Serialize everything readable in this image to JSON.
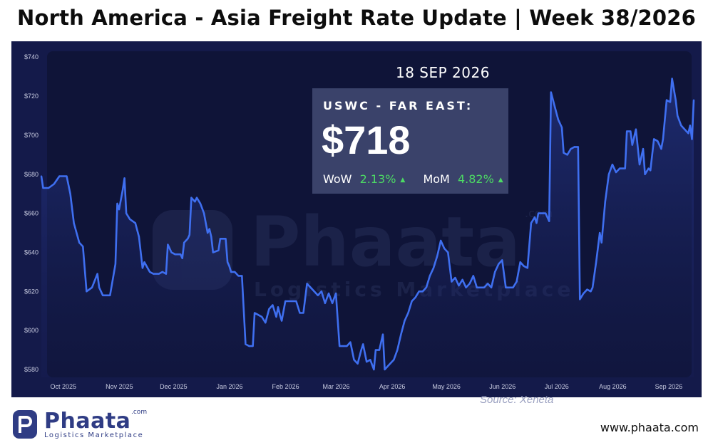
{
  "title": "North America - Asia Freight Rate Update | Week 38/2026",
  "colors": {
    "panel_bg": "#141a4a",
    "plot_bg": "#0f1438",
    "line": "#3f6ff0",
    "positive": "#4cd964",
    "brand": "#2f3c84"
  },
  "overlay": {
    "date": "18 SEP 2026",
    "lane_label": "USWC - FAR EAST:",
    "value": "$718",
    "wow_label": "WoW",
    "wow_value": "2.13%",
    "mom_label": "MoM",
    "mom_value": "4.82%",
    "up_icon": "triangle-up-icon"
  },
  "watermark": {
    "name": "Phaata",
    "tagline": "Logistics Marketplace",
    "com": ".com"
  },
  "source": "Source: Xeneta",
  "footer": {
    "logo_name": "Phaata",
    "logo_com": ".com",
    "logo_tagline": "Logistics Marketplace",
    "url": "www.phaata.com"
  },
  "chart_data": {
    "type": "area",
    "x_start": "2025-09-22",
    "x_end": "2026-09-18",
    "ylim": [
      576,
      743
    ],
    "y_ticks": [
      580,
      600,
      620,
      640,
      660,
      680,
      700,
      720,
      740
    ],
    "y_tick_labels": [
      "$580",
      "$600",
      "$620",
      "$640",
      "$660",
      "$680",
      "$700",
      "$720",
      "$740"
    ],
    "x_ticks": [
      "2025-10-01",
      "2025-11-01",
      "2025-12-01",
      "2026-01-01",
      "2026-02-01",
      "2026-03-01",
      "2026-04-01",
      "2026-05-01",
      "2026-06-01",
      "2026-07-01",
      "2026-08-01",
      "2026-09-01"
    ],
    "x_tick_labels": [
      "Oct 2025",
      "Nov 2025",
      "Dec 2025",
      "Jan 2026",
      "Feb 2026",
      "Mar 2026",
      "Apr 2026",
      "May 2026",
      "Jun 2026",
      "Jul 2026",
      "Aug 2026",
      "Sep 2026"
    ],
    "series": [
      {
        "values": [
          [
            "2025-09-22",
            679
          ],
          [
            "2025-09-23",
            673
          ],
          [
            "2025-09-26",
            673
          ],
          [
            "2025-09-29",
            675
          ],
          [
            "2025-10-02",
            679
          ],
          [
            "2025-10-06",
            679
          ],
          [
            "2025-10-08",
            670
          ],
          [
            "2025-10-10",
            655
          ],
          [
            "2025-10-13",
            645
          ],
          [
            "2025-10-15",
            643
          ],
          [
            "2025-10-17",
            620
          ],
          [
            "2025-10-20",
            622
          ],
          [
            "2025-10-23",
            629
          ],
          [
            "2025-10-24",
            622
          ],
          [
            "2025-10-26",
            618
          ],
          [
            "2025-10-30",
            618
          ],
          [
            "2025-11-02",
            634
          ],
          [
            "2025-11-03",
            665
          ],
          [
            "2025-11-04",
            662
          ],
          [
            "2025-11-06",
            672
          ],
          [
            "2025-11-07",
            678
          ],
          [
            "2025-11-08",
            660
          ],
          [
            "2025-11-10",
            657
          ],
          [
            "2025-11-13",
            655
          ],
          [
            "2025-11-15",
            648
          ],
          [
            "2025-11-17",
            632
          ],
          [
            "2025-11-18",
            635
          ],
          [
            "2025-11-21",
            630
          ],
          [
            "2025-11-23",
            629
          ],
          [
            "2025-11-26",
            629
          ],
          [
            "2025-11-28",
            630
          ],
          [
            "2025-11-30",
            629
          ],
          [
            "2025-12-01",
            644
          ],
          [
            "2025-12-03",
            640
          ],
          [
            "2025-12-05",
            639
          ],
          [
            "2025-12-08",
            639
          ],
          [
            "2025-12-09",
            637
          ],
          [
            "2025-12-10",
            645
          ],
          [
            "2025-12-12",
            647
          ],
          [
            "2025-12-13",
            649
          ],
          [
            "2025-12-14",
            668
          ],
          [
            "2025-12-16",
            666
          ],
          [
            "2025-12-17",
            668
          ],
          [
            "2025-12-19",
            665
          ],
          [
            "2025-12-21",
            660
          ],
          [
            "2025-12-23",
            650
          ],
          [
            "2025-12-24",
            652
          ],
          [
            "2025-12-25",
            648
          ],
          [
            "2025-12-26",
            640
          ],
          [
            "2025-12-29",
            641
          ],
          [
            "2025-12-30",
            647
          ],
          [
            "2026-01-02",
            647
          ],
          [
            "2026-01-03",
            635
          ],
          [
            "2026-01-04",
            633
          ],
          [
            "2026-01-05",
            630
          ],
          [
            "2026-01-07",
            630
          ],
          [
            "2026-01-09",
            628
          ],
          [
            "2026-01-11",
            628
          ],
          [
            "2026-01-13",
            593
          ],
          [
            "2026-01-15",
            592
          ],
          [
            "2026-01-17",
            592
          ],
          [
            "2026-01-18",
            609
          ],
          [
            "2026-01-20",
            608
          ],
          [
            "2026-01-22",
            607
          ],
          [
            "2026-01-24",
            604
          ],
          [
            "2026-01-26",
            611
          ],
          [
            "2026-01-28",
            613
          ],
          [
            "2026-01-30",
            607
          ],
          [
            "2026-01-31",
            612
          ],
          [
            "2026-02-01",
            608
          ],
          [
            "2026-02-02",
            605
          ],
          [
            "2026-02-04",
            615
          ],
          [
            "2026-02-06",
            615
          ],
          [
            "2026-02-08",
            615
          ],
          [
            "2026-02-10",
            615
          ],
          [
            "2026-02-12",
            609
          ],
          [
            "2026-02-14",
            609
          ],
          [
            "2026-02-16",
            624
          ],
          [
            "2026-02-18",
            622
          ],
          [
            "2026-02-20",
            620
          ],
          [
            "2026-02-22",
            618
          ],
          [
            "2026-02-24",
            620
          ],
          [
            "2026-02-26",
            614
          ],
          [
            "2026-02-28",
            619
          ],
          [
            "2026-03-02",
            614
          ],
          [
            "2026-03-04",
            619
          ],
          [
            "2026-03-06",
            592
          ],
          [
            "2026-03-08",
            592
          ],
          [
            "2026-03-10",
            592
          ],
          [
            "2026-03-12",
            594
          ],
          [
            "2026-03-14",
            585
          ],
          [
            "2026-03-16",
            583
          ],
          [
            "2026-03-18",
            590
          ],
          [
            "2026-03-19",
            593
          ],
          [
            "2026-03-21",
            584
          ],
          [
            "2026-03-23",
            585
          ],
          [
            "2026-03-25",
            580
          ],
          [
            "2026-03-26",
            590
          ],
          [
            "2026-03-28",
            590
          ],
          [
            "2026-03-30",
            598
          ],
          [
            "2026-03-31",
            580
          ],
          [
            "2026-04-02",
            582
          ],
          [
            "2026-04-05",
            585
          ],
          [
            "2026-04-07",
            590
          ],
          [
            "2026-04-09",
            598
          ],
          [
            "2026-04-11",
            605
          ],
          [
            "2026-04-13",
            609
          ],
          [
            "2026-04-15",
            615
          ],
          [
            "2026-04-17",
            617
          ],
          [
            "2026-04-19",
            620
          ],
          [
            "2026-04-21",
            620
          ],
          [
            "2026-04-23",
            622
          ],
          [
            "2026-04-25",
            628
          ],
          [
            "2026-04-27",
            632
          ],
          [
            "2026-04-29",
            638
          ],
          [
            "2026-05-01",
            646
          ],
          [
            "2026-05-03",
            642
          ],
          [
            "2026-05-05",
            640
          ],
          [
            "2026-05-07",
            625
          ],
          [
            "2026-05-09",
            627
          ],
          [
            "2026-05-11",
            623
          ],
          [
            "2026-05-13",
            626
          ],
          [
            "2026-05-15",
            622
          ],
          [
            "2026-05-17",
            624
          ],
          [
            "2026-05-19",
            628
          ],
          [
            "2026-05-21",
            622
          ],
          [
            "2026-05-23",
            622
          ],
          [
            "2026-05-25",
            622
          ],
          [
            "2026-05-27",
            624
          ],
          [
            "2026-05-29",
            622
          ],
          [
            "2026-05-31",
            630
          ],
          [
            "2026-06-02",
            634
          ],
          [
            "2026-06-04",
            636
          ],
          [
            "2026-06-06",
            622
          ],
          [
            "2026-06-08",
            622
          ],
          [
            "2026-06-10",
            622
          ],
          [
            "2026-06-12",
            625
          ],
          [
            "2026-06-14",
            635
          ],
          [
            "2026-06-16",
            633
          ],
          [
            "2026-06-18",
            632
          ],
          [
            "2026-06-20",
            655
          ],
          [
            "2026-06-22",
            658
          ],
          [
            "2026-06-23",
            655
          ],
          [
            "2026-06-24",
            660
          ],
          [
            "2026-06-26",
            660
          ],
          [
            "2026-06-28",
            660
          ],
          [
            "2026-06-30",
            656
          ],
          [
            "2026-07-01",
            722
          ],
          [
            "2026-07-03",
            715
          ],
          [
            "2026-07-05",
            708
          ],
          [
            "2026-07-07",
            704
          ],
          [
            "2026-07-08",
            691
          ],
          [
            "2026-07-10",
            690
          ],
          [
            "2026-07-12",
            693
          ],
          [
            "2026-07-14",
            694
          ],
          [
            "2026-07-16",
            694
          ],
          [
            "2026-07-17",
            616
          ],
          [
            "2026-07-19",
            619
          ],
          [
            "2026-07-21",
            621
          ],
          [
            "2026-07-23",
            620
          ],
          [
            "2026-07-24",
            622
          ],
          [
            "2026-07-26",
            635
          ],
          [
            "2026-07-28",
            650
          ],
          [
            "2026-07-29",
            645
          ],
          [
            "2026-07-31",
            666
          ],
          [
            "2026-08-02",
            680
          ],
          [
            "2026-08-04",
            685
          ],
          [
            "2026-08-06",
            681
          ],
          [
            "2026-08-08",
            683
          ],
          [
            "2026-08-11",
            683
          ],
          [
            "2026-08-12",
            702
          ],
          [
            "2026-08-14",
            702
          ],
          [
            "2026-08-15",
            695
          ],
          [
            "2026-08-17",
            703
          ],
          [
            "2026-08-19",
            685
          ],
          [
            "2026-08-21",
            693
          ],
          [
            "2026-08-22",
            680
          ],
          [
            "2026-08-24",
            683
          ],
          [
            "2026-08-25",
            682
          ],
          [
            "2026-08-27",
            698
          ],
          [
            "2026-08-29",
            697
          ],
          [
            "2026-08-31",
            693
          ],
          [
            "2026-09-01",
            698
          ],
          [
            "2026-09-03",
            718
          ],
          [
            "2026-09-05",
            717
          ],
          [
            "2026-09-06",
            729
          ],
          [
            "2026-09-08",
            718
          ],
          [
            "2026-09-09",
            710
          ],
          [
            "2026-09-11",
            705
          ],
          [
            "2026-09-13",
            703
          ],
          [
            "2026-09-15",
            701
          ],
          [
            "2026-09-16",
            705
          ],
          [
            "2026-09-17",
            698
          ],
          [
            "2026-09-18",
            718
          ]
        ]
      }
    ]
  }
}
